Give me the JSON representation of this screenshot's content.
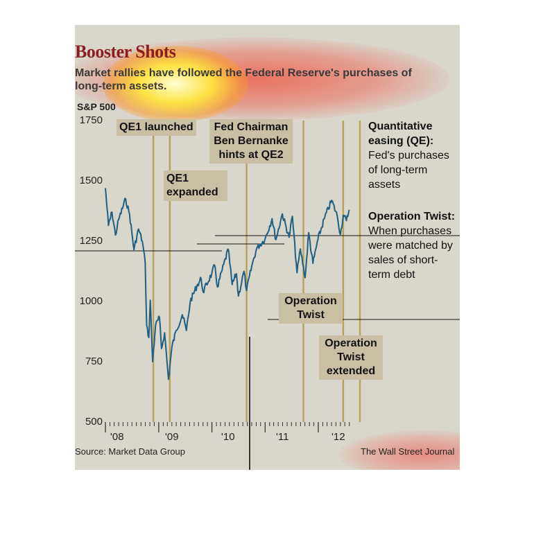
{
  "title": "Booster Shots",
  "subtitle": "Market rallies have followed the Federal Reserve's purchases of long-term assets.",
  "series_label": "S&P 500",
  "source": "Source: Market Data Group",
  "credit": "The Wall Street Journal",
  "legend": {
    "qe_heading": "Quantitative easing (QE):",
    "qe_desc": "Fed's purchases of long-term assets",
    "twist_heading": "Operation Twist:",
    "twist_desc": "When purchases were matched by sales of short-term debt"
  },
  "colors": {
    "line": "#1f5f82",
    "event_line": "#b8a25a",
    "box_fill": "#c9bfa3",
    "background": "#d9d6cc",
    "title": "#8c1e1e"
  },
  "chart_data": {
    "type": "line",
    "title": "Booster Shots",
    "subtitle": "Market rallies have followed the Federal Reserve's purchases of long-term assets.",
    "ylabel": "S&P 500",
    "xlabel": "",
    "ylim": [
      500,
      1750
    ],
    "yticks": [
      500,
      750,
      1000,
      1250,
      1500,
      1750
    ],
    "xticks": [
      "'08",
      "'09",
      "'10",
      "'11",
      "'12"
    ],
    "xlim": [
      "2008-01-01",
      "2012-08-31"
    ],
    "grid": false,
    "series": [
      {
        "name": "S&P 500",
        "points": [
          [
            "2008-01-01",
            1470
          ],
          [
            "2008-01-22",
            1315
          ],
          [
            "2008-02-15",
            1370
          ],
          [
            "2008-03-10",
            1275
          ],
          [
            "2008-04-01",
            1340
          ],
          [
            "2008-05-19",
            1425
          ],
          [
            "2008-06-15",
            1360
          ],
          [
            "2008-07-15",
            1215
          ],
          [
            "2008-08-15",
            1300
          ],
          [
            "2008-09-10",
            1250
          ],
          [
            "2008-09-30",
            1160
          ],
          [
            "2008-10-10",
            900
          ],
          [
            "2008-10-25",
            850
          ],
          [
            "2008-11-04",
            1005
          ],
          [
            "2008-11-20",
            750
          ],
          [
            "2008-12-10",
            900
          ],
          [
            "2009-01-06",
            935
          ],
          [
            "2009-01-20",
            805
          ],
          [
            "2009-02-10",
            870
          ],
          [
            "2009-03-09",
            677
          ],
          [
            "2009-04-01",
            810
          ],
          [
            "2009-05-01",
            880
          ],
          [
            "2009-06-12",
            945
          ],
          [
            "2009-07-10",
            880
          ],
          [
            "2009-08-05",
            1000
          ],
          [
            "2009-09-20",
            1065
          ],
          [
            "2009-10-19",
            1095
          ],
          [
            "2009-11-01",
            1040
          ],
          [
            "2009-12-31",
            1115
          ],
          [
            "2010-01-19",
            1150
          ],
          [
            "2010-02-08",
            1060
          ],
          [
            "2010-04-23",
            1217
          ],
          [
            "2010-05-20",
            1070
          ],
          [
            "2010-06-18",
            1115
          ],
          [
            "2010-07-02",
            1022
          ],
          [
            "2010-08-09",
            1125
          ],
          [
            "2010-08-27",
            1045
          ],
          [
            "2010-10-01",
            1145
          ],
          [
            "2010-11-04",
            1220
          ],
          [
            "2010-12-31",
            1258
          ],
          [
            "2011-02-18",
            1343
          ],
          [
            "2011-03-16",
            1256
          ],
          [
            "2011-04-29",
            1363
          ],
          [
            "2011-06-15",
            1266
          ],
          [
            "2011-07-07",
            1353
          ],
          [
            "2011-08-08",
            1119
          ],
          [
            "2011-08-31",
            1218
          ],
          [
            "2011-10-03",
            1099
          ],
          [
            "2011-10-27",
            1285
          ],
          [
            "2011-11-25",
            1158
          ],
          [
            "2011-12-30",
            1258
          ],
          [
            "2012-02-15",
            1350
          ],
          [
            "2012-04-02",
            1419
          ],
          [
            "2012-05-10",
            1355
          ],
          [
            "2012-06-01",
            1278
          ],
          [
            "2012-06-20",
            1357
          ],
          [
            "2012-07-12",
            1335
          ],
          [
            "2012-07-31",
            1380
          ]
        ]
      }
    ],
    "annotations": [
      {
        "label": "QE1 launched",
        "date": "2008-11-25"
      },
      {
        "label": "QE1 expanded",
        "date": "2009-03-18"
      },
      {
        "label": "Fed Chairman Ben Bernanke hints at QE2",
        "date": "2010-08-27"
      },
      {
        "label": "Operation Twist",
        "date": "2011-09-21"
      },
      {
        "label": "Operation Twist extended",
        "date": "2012-06-20"
      }
    ]
  }
}
